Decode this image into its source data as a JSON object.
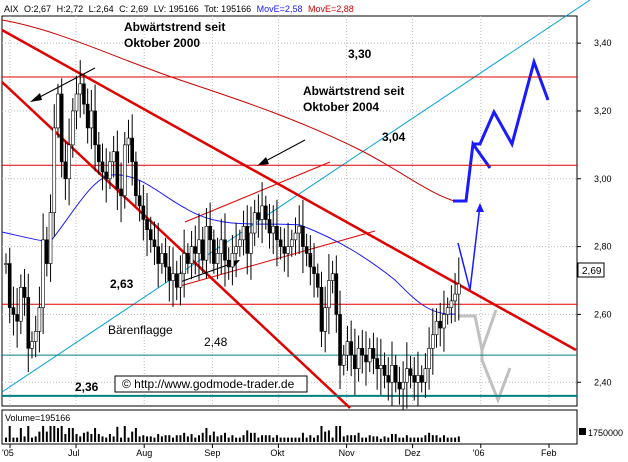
{
  "header": {
    "symbol": "AIX",
    "open": "O:2,67",
    "high": "H:2,72",
    "low": "L:2,64",
    "close": "C: 2,69",
    "lv": "LV: 195166",
    "tot": "Tot: 195166",
    "move1": "MovE=2,58",
    "move2": "MovE=2,88"
  },
  "colors": {
    "background": "#ffffff",
    "candles": "#000000",
    "trend_red": "#e00000",
    "ma_fast": "#1a1aff",
    "ma_slow": "#cc0000",
    "channel_cyan": "#00a0d0",
    "support_teal": "#008080",
    "projection_blue": "#1a1aff",
    "projection_grey": "#c0c0c0"
  },
  "annotations": {
    "trend2000": [
      "Abwärtstrend seit",
      "Oktober 2000"
    ],
    "trend2004": [
      "Abwärtstrend seit",
      "Oktober 2004"
    ],
    "baerenflagge": "Bärenflagge",
    "copyright": "© http://www.godmode-trader.de",
    "lvl_330": "3,30",
    "lvl_304": "3,04",
    "lvl_263": "2,63",
    "lvl_248": "2,48",
    "lvl_236": "2,36",
    "last_price": "2,69"
  },
  "volume": {
    "label": "Volume=195166",
    "scale": "1750000"
  },
  "chart_data": {
    "type": "candlestick",
    "title": "",
    "ylim": [
      2.33,
      3.48
    ],
    "y_ticks": [
      "3,40",
      "3,20",
      "3,00",
      "2,80",
      "2,60",
      "2,40"
    ],
    "y_tick_values": [
      3.4,
      3.2,
      3.0,
      2.8,
      2.6,
      2.4
    ],
    "x_labels": [
      "'05",
      "Jul",
      "Aug",
      "Sep",
      "Okt",
      "Nov",
      "Dez",
      "'06",
      "Feb"
    ],
    "x_label_dates": [
      "2005-06-01",
      "2005-07-01",
      "2005-08-01",
      "2005-09-01",
      "2005-10-01",
      "2005-11-01",
      "2005-12-01",
      "2006-01-01",
      "2006-02-01"
    ],
    "last_date": "2005-12-22",
    "horizontal_levels": [
      {
        "value": 3.3,
        "label": "3,30"
      },
      {
        "value": 3.04,
        "label": "3,04"
      },
      {
        "value": 2.63,
        "label": "2,63"
      },
      {
        "value": 2.48,
        "label": "2,48"
      },
      {
        "value": 2.36,
        "label": "2,36"
      }
    ],
    "closes": [
      2.75,
      2.62,
      2.6,
      2.58,
      2.68,
      2.65,
      2.5,
      2.52,
      2.55,
      2.62,
      2.82,
      2.75,
      2.9,
      3.15,
      3.25,
      3.05,
      3.0,
      3.1,
      3.2,
      3.25,
      3.28,
      3.22,
      3.15,
      3.2,
      3.1,
      3.05,
      3.02,
      3.0,
      3.05,
      3.08,
      2.97,
      2.95,
      3.1,
      3.12,
      3.05,
      2.95,
      2.92,
      2.88,
      2.85,
      2.82,
      2.8,
      2.75,
      2.78,
      2.74,
      2.7,
      2.72,
      2.68,
      2.72,
      2.78,
      2.75,
      2.8,
      2.78,
      2.82,
      2.76,
      2.86,
      2.82,
      2.75,
      2.78,
      2.82,
      2.76,
      2.74,
      2.78,
      2.8,
      2.82,
      2.86,
      2.78,
      2.84,
      2.9,
      2.88,
      2.92,
      2.88,
      2.84,
      2.86,
      2.82,
      2.8,
      2.78,
      2.8,
      2.82,
      2.84,
      2.86,
      2.8,
      2.78,
      2.74,
      2.72,
      2.68,
      2.55,
      2.62,
      2.7,
      2.72,
      2.6,
      2.45,
      2.48,
      2.52,
      2.48,
      2.44,
      2.5,
      2.48,
      2.46,
      2.5,
      2.47,
      2.44,
      2.45,
      2.42,
      2.4,
      2.45,
      2.4,
      2.38,
      2.4,
      2.44,
      2.42,
      2.4,
      2.42,
      2.4,
      2.44,
      2.5,
      2.54,
      2.58,
      2.56,
      2.6,
      2.62,
      2.64,
      2.66,
      2.69
    ]
  }
}
